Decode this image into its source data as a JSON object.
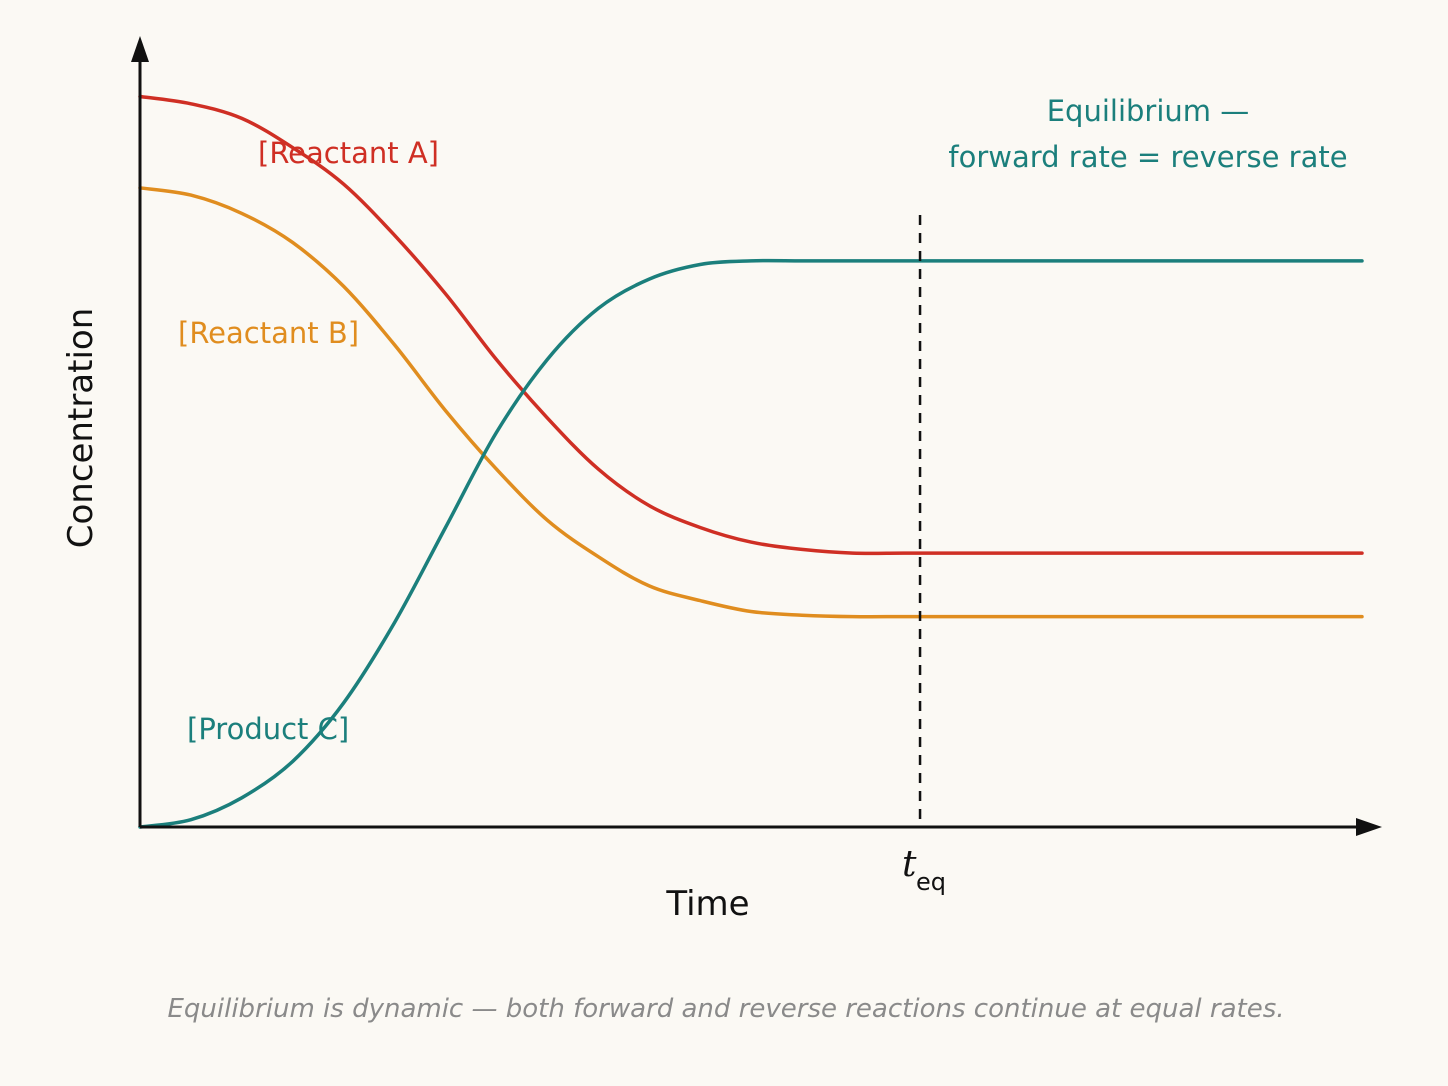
{
  "chart_data": {
    "type": "line",
    "xlabel": "Time",
    "ylabel": "Concentration",
    "grid": false,
    "xlim": [
      0,
      12
    ],
    "ylim": [
      0,
      1.05
    ],
    "x": [
      0,
      0.5,
      1,
      1.5,
      2,
      2.5,
      3,
      3.5,
      4,
      4.5,
      5,
      5.5,
      6,
      6.5,
      7,
      7.5,
      8,
      8.5,
      9,
      9.5,
      10,
      10.5,
      11,
      11.5,
      12
    ],
    "series": [
      {
        "name": "[Reactant A]",
        "color": "#cf2f24",
        "values": [
          1.0,
          0.99,
          0.97,
          0.93,
          0.88,
          0.81,
          0.73,
          0.64,
          0.56,
          0.49,
          0.44,
          0.41,
          0.39,
          0.38,
          0.375,
          0.375,
          0.375,
          0.375,
          0.375,
          0.375,
          0.375,
          0.375,
          0.375,
          0.375,
          0.375
        ]
      },
      {
        "name": "[Reactant B]",
        "color": "#e08d1f",
        "values": [
          0.875,
          0.865,
          0.84,
          0.8,
          0.74,
          0.66,
          0.57,
          0.49,
          0.42,
          0.37,
          0.33,
          0.31,
          0.295,
          0.29,
          0.288,
          0.288,
          0.288,
          0.288,
          0.288,
          0.288,
          0.288,
          0.288,
          0.288,
          0.288,
          0.288
        ]
      },
      {
        "name": "[Product C]",
        "color": "#1b7f7c",
        "values": [
          0.0,
          0.01,
          0.04,
          0.09,
          0.17,
          0.28,
          0.41,
          0.54,
          0.64,
          0.71,
          0.75,
          0.77,
          0.775,
          0.775,
          0.775,
          0.775,
          0.775,
          0.775,
          0.775,
          0.775,
          0.775,
          0.775,
          0.775,
          0.775,
          0.775
        ]
      }
    ],
    "marker": {
      "x": 7.66,
      "label_main": "t",
      "label_sub": "eq",
      "style": "dashed"
    },
    "annotation": {
      "line1": "Equilibrium —",
      "line2": "forward rate = reverse rate",
      "color": "#1b7f7c"
    },
    "caption": "Equilibrium is dynamic — both forward and reverse reactions continue at equal rates."
  }
}
